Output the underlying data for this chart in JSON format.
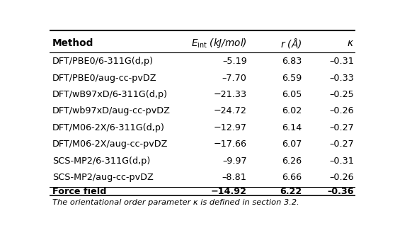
{
  "header_display": [
    "Method",
    "$\\mathit{E}_{\\mathrm{int}}$ (kJ/mol)",
    "$\\mathit{r}$ (Å)",
    "$\\mathit{\\kappa}$"
  ],
  "rows": [
    [
      "DFT/PBE0/6-311G(d,p)",
      "–5.19",
      "6.83",
      "–0.31"
    ],
    [
      "DFT/PBE0/aug-cc-pvDZ",
      "–7.70",
      "6.59",
      "–0.33"
    ],
    [
      "DFT/wB97xD/6-311G(d,p)",
      "−21.33",
      "6.05",
      "–0.25"
    ],
    [
      "DFT/wb97xD/aug-cc-pvDZ",
      "−24.72",
      "6.02",
      "–0.26"
    ],
    [
      "DFT/M06-2X/6-311G(d,p)",
      "−12.97",
      "6.14",
      "–0.27"
    ],
    [
      "DFT/M06-2X/aug-cc-pvDZ",
      "−17.66",
      "6.07",
      "–0.27"
    ],
    [
      "SCS-MP2/6-311G(d,p)",
      "–9.97",
      "6.26",
      "–0.31"
    ],
    [
      "SCS-MP2/aug-cc-pvDZ",
      "–8.81",
      "6.66",
      "–0.26"
    ],
    [
      "Force field",
      "−14.92",
      "6.22",
      "–0.36"
    ]
  ],
  "footnote": "The orientational order parameter κ is defined in section 3.2.",
  "background_color": "#ffffff",
  "text_color": "#000000",
  "font_size": 9.2,
  "header_font_size": 9.8
}
